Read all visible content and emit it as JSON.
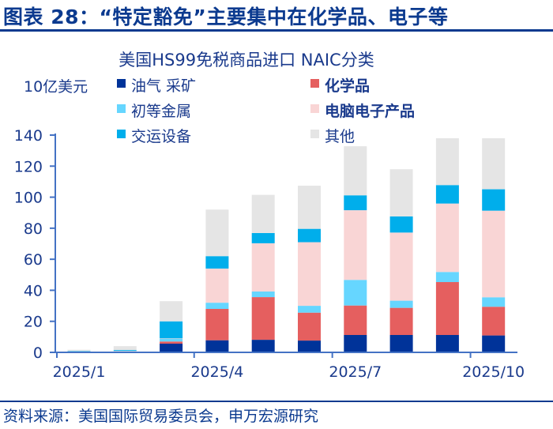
{
  "header": {
    "figure_title": "图表 28：“特定豁免”主要集中在化学品、电子等"
  },
  "footer": {
    "source": "资料来源：美国国际贸易委员会，申万宏源研究"
  },
  "chart_data": {
    "type": "bar",
    "stacked": true,
    "title": "美国HS99免税商品进口 NAIC分类",
    "ylabel": "10亿美元",
    "xlabel": "",
    "ylim": [
      0,
      140
    ],
    "yticks": [
      0,
      20,
      40,
      60,
      80,
      100,
      120,
      140
    ],
    "categories": [
      "2025/1",
      "2025/2",
      "2025/3",
      "2025/4",
      "2025/5",
      "2025/6",
      "2025/7",
      "2025/8",
      "2025/9",
      "2025/10"
    ],
    "xtick_labels": [
      "2025/1",
      "2025/4",
      "2025/7",
      "2025/10"
    ],
    "legend_placement": "top",
    "grid": false,
    "series": [
      {
        "name": "油气 采矿",
        "color": "#003399",
        "bold": false,
        "values": [
          0.2,
          0.3,
          5.6,
          7.8,
          8.1,
          7.6,
          11.2,
          11.2,
          11.2,
          10.9
        ]
      },
      {
        "name": "化学品",
        "color": "#e55f5f",
        "bold": true,
        "values": [
          0.1,
          0.2,
          1.4,
          20.2,
          27.5,
          18.0,
          19.0,
          17.5,
          34.1,
          18.5
        ]
      },
      {
        "name": "初等金属",
        "color": "#66d6ff",
        "bold": false,
        "values": [
          0.1,
          0.2,
          1.7,
          4.0,
          3.6,
          4.4,
          16.5,
          4.6,
          6.5,
          6.1
        ]
      },
      {
        "name": "电脑电子产品",
        "color": "#f9d5d5",
        "bold": true,
        "values": [
          0.2,
          0.3,
          0.3,
          22.0,
          31.1,
          41.0,
          44.9,
          43.9,
          44.1,
          55.8
        ]
      },
      {
        "name": "交运设备",
        "color": "#00aeeb",
        "bold": false,
        "values": [
          0.3,
          0.5,
          11.0,
          8.0,
          6.6,
          8.6,
          9.6,
          10.4,
          11.9,
          13.8
        ]
      },
      {
        "name": "其他",
        "color": "#e5e5e5",
        "bold": false,
        "values": [
          0.8,
          2.5,
          13.0,
          30.0,
          24.6,
          27.8,
          31.6,
          30.4,
          30.2,
          32.9
        ]
      }
    ]
  }
}
